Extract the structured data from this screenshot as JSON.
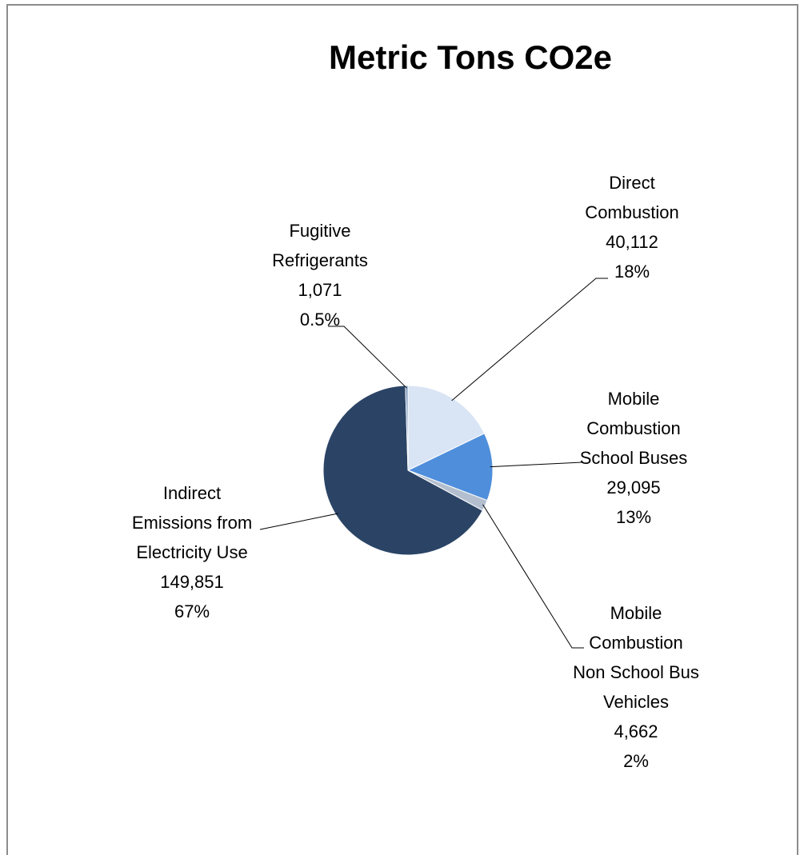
{
  "chart_data": {
    "type": "pie",
    "title": "Metric Tons CO2e",
    "categories": [
      "Direct\nCombustion",
      "Mobile\nCombustion\nSchool Buses",
      "Mobile\nCombustion\nNon School Bus\nVehicles",
      "Indirect\nEmissions from\nElectricity Use",
      "Fugitive\nRefrigerants"
    ],
    "values": [
      40112,
      29095,
      4662,
      149851,
      1071
    ],
    "value_labels": [
      "40,112",
      "29,095",
      "4,662",
      "149,851",
      "1,071"
    ],
    "percent_labels": [
      "18%",
      "13%",
      "2%",
      "67%",
      "0.5%"
    ],
    "colors": [
      "#d9e4f4",
      "#4f8edb",
      "#b3bfcf",
      "#2b4466",
      "#7b98bd"
    ]
  }
}
